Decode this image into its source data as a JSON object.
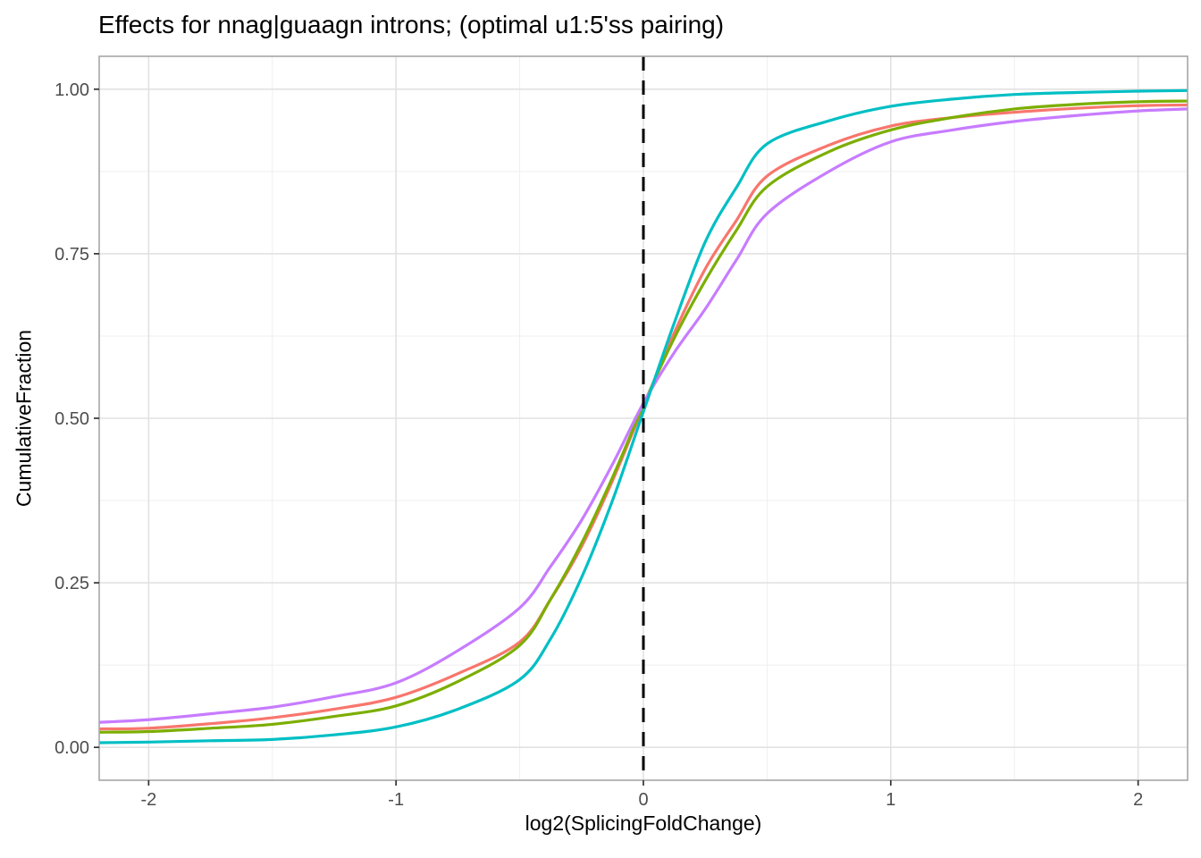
{
  "title": "Effects for nnag|guaagn introns; (optimal u1:5'ss pairing)",
  "axes": {
    "x_label": "log2(SplicingFoldChange)",
    "y_label": "CumulativeFraction",
    "x_tick_labels": [
      "-2",
      "-1",
      "0",
      "1",
      "2"
    ],
    "y_tick_labels": [
      "0.00",
      "0.25",
      "0.50",
      "0.75",
      "1.00"
    ]
  },
  "colors": {
    "teal": "#00BFC4",
    "salmon": "#F8766D",
    "olive": "#7CAE00",
    "purple": "#C77CFF",
    "reference_line": "#000000",
    "grid_major": "#e2e2e2",
    "grid_minor": "#efefef",
    "panel_border": "#a6a6a6",
    "tick_mark": "#333333",
    "axis_text": "#4d4d4d"
  },
  "chart_data": {
    "type": "line",
    "title": "Effects for nnag|guaagn introns; (optimal u1:5'ss pairing)",
    "xlabel": "log2(SplicingFoldChange)",
    "ylabel": "CumulativeFraction",
    "xlim": [
      -2.2,
      2.2
    ],
    "ylim": [
      -0.05,
      1.05
    ],
    "x_major_ticks": [
      -2,
      -1,
      0,
      1,
      2
    ],
    "x_minor_ticks": [
      -1.5,
      -0.5,
      0.5,
      1.5
    ],
    "y_major_ticks": [
      0,
      0.25,
      0.5,
      0.75,
      1.0
    ],
    "y_minor_ticks": [
      0.125,
      0.375,
      0.625,
      0.875
    ],
    "grid": true,
    "legend_position": "none",
    "reference_line": {
      "x": 0,
      "style": "dashed",
      "color": "#000000"
    },
    "x": [
      -2.2,
      -2.0,
      -1.75,
      -1.5,
      -1.25,
      -1.0,
      -0.75,
      -0.5,
      -0.375,
      -0.25,
      -0.125,
      0,
      0.125,
      0.25,
      0.375,
      0.5,
      0.75,
      1.0,
      1.25,
      1.5,
      1.75,
      2.0,
      2.2
    ],
    "series": [
      {
        "name": "salmon-curve",
        "color": "#F8766D",
        "values": [
          0.028,
          0.029,
          0.036,
          0.045,
          0.058,
          0.076,
          0.112,
          0.16,
          0.225,
          0.305,
          0.405,
          0.518,
          0.63,
          0.727,
          0.8,
          0.868,
          0.915,
          0.944,
          0.957,
          0.965,
          0.971,
          0.975,
          0.976
        ]
      },
      {
        "name": "olive-curve",
        "color": "#7CAE00",
        "values": [
          0.023,
          0.024,
          0.029,
          0.035,
          0.047,
          0.063,
          0.1,
          0.155,
          0.225,
          0.31,
          0.41,
          0.52,
          0.622,
          0.709,
          0.785,
          0.852,
          0.905,
          0.938,
          0.957,
          0.97,
          0.977,
          0.981,
          0.982
        ]
      },
      {
        "name": "purple-curve",
        "color": "#C77CFF",
        "values": [
          0.038,
          0.042,
          0.051,
          0.061,
          0.077,
          0.098,
          0.147,
          0.212,
          0.275,
          0.345,
          0.43,
          0.523,
          0.6,
          0.666,
          0.74,
          0.811,
          0.875,
          0.92,
          0.938,
          0.951,
          0.96,
          0.967,
          0.97
        ]
      },
      {
        "name": "teal-curve",
        "color": "#00BFC4",
        "values": [
          0.007,
          0.008,
          0.01,
          0.012,
          0.019,
          0.031,
          0.058,
          0.103,
          0.165,
          0.258,
          0.375,
          0.51,
          0.645,
          0.768,
          0.85,
          0.917,
          0.952,
          0.974,
          0.985,
          0.992,
          0.995,
          0.997,
          0.998
        ]
      }
    ]
  }
}
